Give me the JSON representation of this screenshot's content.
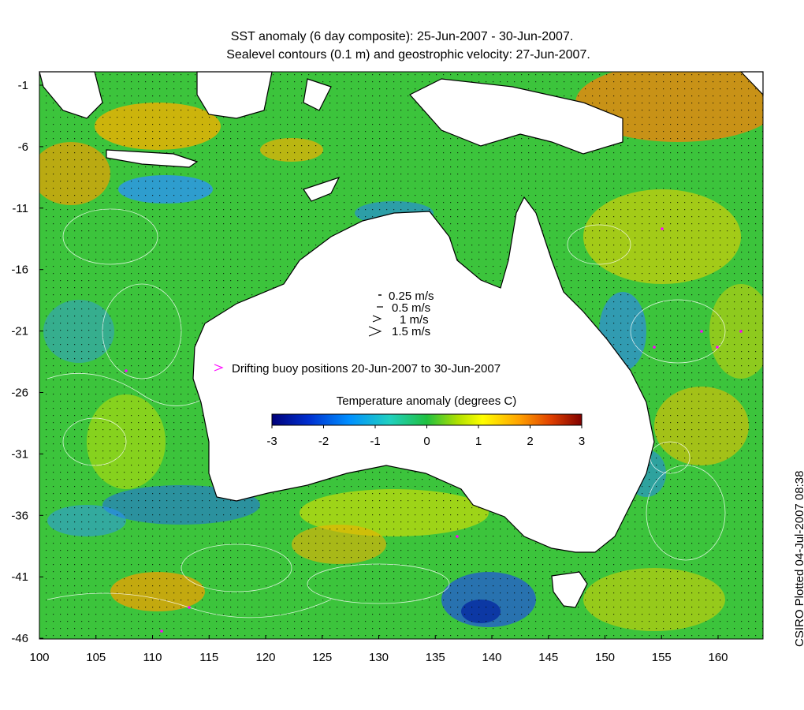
{
  "title_line1": "SST anomaly (6 day composite): 25-Jun-2007 - 30-Jun-2007.",
  "title_line2": "Sealevel contours (0.1 m) and geostrophic velocity: 27-Jun-2007.",
  "x_ticks": [
    "100",
    "105",
    "110",
    "115",
    "120",
    "125",
    "130",
    "135",
    "140",
    "145",
    "150",
    "155",
    "160"
  ],
  "y_ticks": [
    "-1",
    "-6",
    "-11",
    "-16",
    "-21",
    "-26",
    "-31",
    "-36",
    "-41",
    "-46"
  ],
  "velocity_legend": [
    "0.25 m/s",
    "0.5 m/s",
    "1 m/s",
    "1.5 m/s"
  ],
  "buoy_legend": "Drifting buoy positions 20-Jun-2007 to 30-Jun-2007",
  "colorbar": {
    "title": "Temperature anomaly (degrees C)",
    "ticks": [
      "-3",
      "-2",
      "-1",
      "0",
      "1",
      "2",
      "3"
    ],
    "range": [
      -3,
      3
    ]
  },
  "credit": "CSIRO Plotted 04-Jul-2007 08:38",
  "colors": {
    "ocean_base": "#3cc43c",
    "warm": "#f0a000",
    "cool": "#2080ff",
    "land": "#ffffff",
    "coast": "#000000",
    "buoy": "#ff00ff"
  }
}
